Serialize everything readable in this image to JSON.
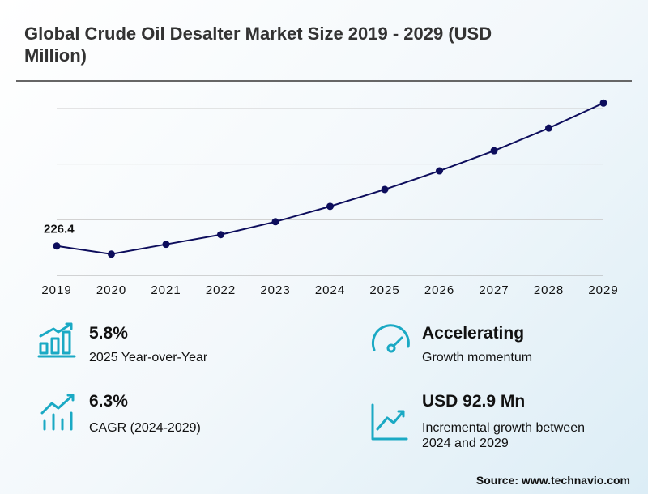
{
  "chart_data": {
    "type": "line",
    "title": "Global Crude Oil Desalter Market Size 2019 - 2029 (USD Million)",
    "categories": [
      "2019",
      "2020",
      "2021",
      "2022",
      "2023",
      "2024",
      "2025",
      "2026",
      "2027",
      "2028",
      "2029"
    ],
    "values": [
      226.4,
      219.1,
      227.9,
      236.6,
      248.2,
      262.0,
      277.2,
      293.9,
      312.0,
      332.4,
      354.9
    ],
    "color": "#0d0d5c",
    "ylim": [
      200,
      350
    ],
    "grid": true
  },
  "stats": [
    {
      "value": "5.8%",
      "label": "2025 Year-over-Year"
    },
    {
      "value": "Accelerating",
      "label": "Growth momentum"
    },
    {
      "value": "6.3%",
      "label": "CAGR (2024-2029)"
    },
    {
      "value": "USD 92.9 Mn",
      "label": "Incremental growth between 2024 and 2029"
    }
  ],
  "source": "Source: www.technavio.com"
}
